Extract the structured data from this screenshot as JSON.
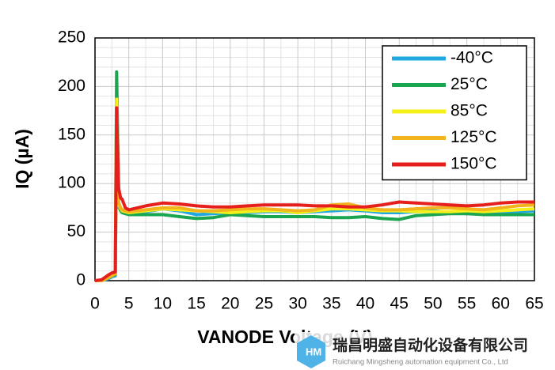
{
  "chart_data": {
    "type": "line",
    "x_label": "VANODE Voltage (V)",
    "y_label": "IQ (µA)",
    "x": [
      0,
      1,
      2,
      2.5,
      3,
      3.2,
      3.5,
      3.8,
      4,
      4.5,
      5,
      7.5,
      10,
      12.5,
      15,
      17.5,
      20,
      22.5,
      25,
      27.5,
      30,
      32.5,
      35,
      37.5,
      40,
      42.5,
      45,
      47.5,
      50,
      52.5,
      55,
      57.5,
      60,
      62.5,
      65
    ],
    "series": [
      {
        "name": "-40°C",
        "color": "#1ea7e0",
        "values": [
          0,
          0,
          2,
          4,
          5,
          140,
          76,
          72,
          71,
          70,
          69,
          71,
          74,
          72,
          68,
          69,
          70,
          70,
          71,
          71,
          70,
          71,
          72,
          73,
          72,
          70,
          70,
          71,
          72,
          70,
          69,
          69,
          70,
          71,
          72
        ]
      },
      {
        "name": "25°C",
        "color": "#1aa550",
        "values": [
          0,
          0,
          3,
          5,
          6,
          215,
          80,
          72,
          70,
          69,
          68,
          68,
          68,
          66,
          64,
          65,
          68,
          67,
          66,
          66,
          66,
          66,
          65,
          65,
          66,
          64,
          63,
          67,
          68,
          69,
          69,
          68,
          68,
          68,
          68
        ]
      },
      {
        "name": "85°C",
        "color": "#f5f01a",
        "values": [
          0,
          0,
          4,
          6,
          7,
          187,
          78,
          74,
          72,
          71,
          70,
          72,
          74,
          73,
          72,
          71,
          70,
          71,
          72,
          72,
          70,
          72,
          74,
          74,
          73,
          72,
          72,
          71,
          71,
          71,
          72,
          71,
          72,
          73,
          74
        ]
      },
      {
        "name": "125°C",
        "color": "#f2b41c",
        "values": [
          0,
          0,
          3,
          5,
          7,
          165,
          80,
          75,
          73,
          72,
          71,
          73,
          75,
          75,
          72,
          72,
          73,
          74,
          74,
          73,
          72,
          73,
          78,
          79,
          75,
          73,
          73,
          74,
          75,
          75,
          74,
          73,
          75,
          77,
          78
        ]
      },
      {
        "name": "150°C",
        "color": "#e5201c",
        "values": [
          0,
          1,
          6,
          8,
          9,
          178,
          95,
          85,
          84,
          75,
          73,
          77,
          80,
          79,
          77,
          76,
          76,
          77,
          78,
          78,
          78,
          77,
          77,
          76,
          76,
          78,
          81,
          80,
          79,
          78,
          77,
          78,
          80,
          81,
          81
        ]
      }
    ],
    "xlim": [
      0,
      65
    ],
    "xticks": [
      0,
      5,
      10,
      15,
      20,
      25,
      30,
      35,
      40,
      45,
      50,
      55,
      60,
      65
    ],
    "ylim": [
      0,
      250
    ],
    "yticks": [
      0,
      50,
      100,
      150,
      200,
      250
    ],
    "grid": true,
    "legend": "upper right"
  },
  "watermark": {
    "name": "瑞昌明盛自动化设备有限公司",
    "subtitle": "Ruichang Mingsheng automation equipment Co., Ltd"
  }
}
